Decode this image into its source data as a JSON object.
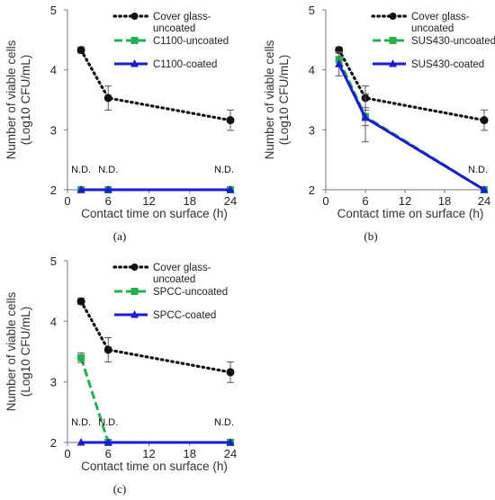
{
  "chart_data": [
    {
      "type": "line",
      "panel_label": "(a)",
      "xlabel": "Contact time on surface (h)",
      "ylabel": "Number of viable cells",
      "ylabel2": "(Log10 CFU/mL)",
      "xlim": [
        0,
        24
      ],
      "ylim": [
        2,
        5
      ],
      "xticks": [
        0,
        6,
        12,
        18,
        24
      ],
      "yticks": [
        2,
        3,
        4,
        5
      ],
      "nd_labels": [
        {
          "x": 2,
          "text": "N.D."
        },
        {
          "x": 6,
          "text": "N.D."
        },
        {
          "x": 24,
          "text": "N.D."
        }
      ],
      "series": [
        {
          "name": "Cover glass-uncoated",
          "name_lines": [
            "Cover glass-",
            "uncoated"
          ],
          "style": "dotted",
          "color": "#111111",
          "marker": "circle",
          "x": [
            2,
            6,
            24
          ],
          "y": [
            4.33,
            3.53,
            3.16
          ],
          "err": [
            0.05,
            0.2,
            0.17
          ]
        },
        {
          "name": "C1100-uncoated",
          "name_lines": [
            "C1100-uncoated"
          ],
          "style": "dashed",
          "color": "#22b14c",
          "marker": "square",
          "x": [
            2,
            6,
            24
          ],
          "y": [
            2.0,
            2.0,
            2.0
          ],
          "err": [
            0,
            0,
            0
          ]
        },
        {
          "name": "C1100-coated",
          "name_lines": [
            "C1100-coated"
          ],
          "style": "solid",
          "color": "#1a1adb",
          "marker": "triangle",
          "x": [
            2,
            6,
            24
          ],
          "y": [
            2.0,
            2.0,
            2.0
          ],
          "err": [
            0,
            0,
            0
          ]
        }
      ]
    },
    {
      "type": "line",
      "panel_label": "(b)",
      "xlabel": "Contact time on surface (h)",
      "ylabel": "Number of viable cells",
      "ylabel2": "(Log10 CFU/mL)",
      "xlim": [
        0,
        24
      ],
      "ylim": [
        2,
        5
      ],
      "xticks": [
        0,
        6,
        12,
        18,
        24
      ],
      "yticks": [
        2,
        3,
        4,
        5
      ],
      "nd_labels": [
        {
          "x": 24,
          "text": "N.D."
        }
      ],
      "series": [
        {
          "name": "Cover glass-uncoated",
          "name_lines": [
            "Cover glass-",
            "uncoated"
          ],
          "style": "dotted",
          "color": "#111111",
          "marker": "circle",
          "x": [
            2,
            6,
            24
          ],
          "y": [
            4.33,
            3.53,
            3.16
          ],
          "err": [
            0.05,
            0.2,
            0.17
          ]
        },
        {
          "name": "SUS430-uncoated",
          "name_lines": [
            "SUS430-uncoated"
          ],
          "style": "dashed",
          "color": "#22b14c",
          "marker": "square",
          "x": [
            2,
            6,
            24
          ],
          "y": [
            4.17,
            3.22,
            2.0
          ],
          "err": [
            0.12,
            0.15,
            0
          ]
        },
        {
          "name": "SUS430-coated",
          "name_lines": [
            "SUS430-coated"
          ],
          "style": "solid",
          "color": "#1a1adb",
          "marker": "triangle",
          "x": [
            2,
            6,
            24
          ],
          "y": [
            4.1,
            3.2,
            2.0
          ],
          "err": [
            0.2,
            0.4,
            0
          ]
        }
      ]
    },
    {
      "type": "line",
      "panel_label": "(c)",
      "xlabel": "Contact time on surface (h)",
      "ylabel": "Number of viable cells",
      "ylabel2": "(Log10 CFU/mL)",
      "xlim": [
        0,
        24
      ],
      "ylim": [
        2,
        5
      ],
      "xticks": [
        0,
        6,
        12,
        18,
        24
      ],
      "yticks": [
        2,
        3,
        4,
        5
      ],
      "nd_labels": [
        {
          "x": 2,
          "text": "N.D."
        },
        {
          "x": 6,
          "text": "N.D."
        },
        {
          "x": 24,
          "text": "N.D."
        }
      ],
      "series": [
        {
          "name": "Cover glass-uncoated",
          "name_lines": [
            "Cover glass-",
            "uncoated"
          ],
          "style": "dotted",
          "color": "#111111",
          "marker": "circle",
          "x": [
            2,
            6,
            24
          ],
          "y": [
            4.33,
            3.53,
            3.16
          ],
          "err": [
            0.05,
            0.2,
            0.17
          ]
        },
        {
          "name": "SPCC-uncoated",
          "name_lines": [
            "SPCC-uncoated"
          ],
          "style": "dashed",
          "color": "#22b14c",
          "marker": "square",
          "x": [
            2,
            6,
            24
          ],
          "y": [
            3.4,
            2.0,
            2.0
          ],
          "err": [
            0.08,
            0,
            0
          ]
        },
        {
          "name": "SPCC-coated",
          "name_lines": [
            "SPCC-coated"
          ],
          "style": "solid",
          "color": "#1a1adb",
          "marker": "triangle",
          "x": [
            2,
            6,
            24
          ],
          "y": [
            2.0,
            2.0,
            2.0
          ],
          "err": [
            0,
            0,
            0
          ]
        }
      ]
    }
  ]
}
